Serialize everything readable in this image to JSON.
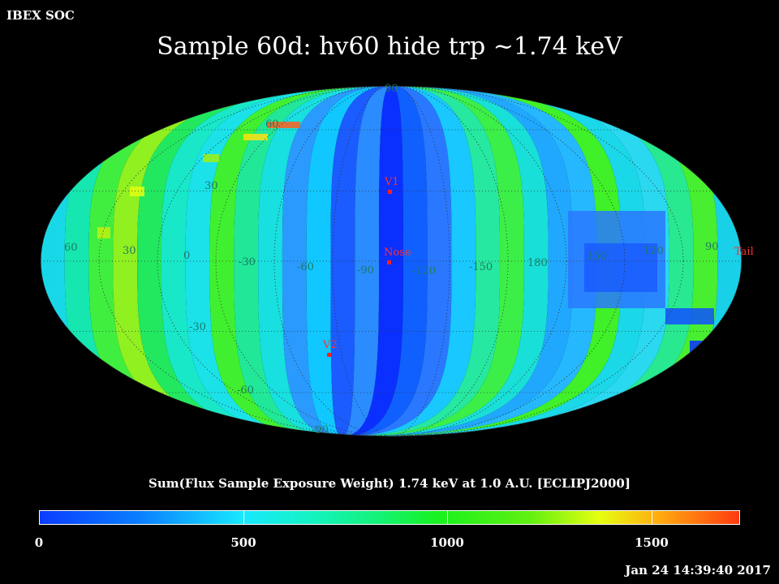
{
  "header": {
    "corner_label": "IBEX SOC",
    "title": "Sample 60d: hv60 hide trp ~1.74 keV"
  },
  "map": {
    "projection": "Mollweide",
    "lat_labels": [
      "90",
      "60",
      "30",
      "-30",
      "-60",
      "-90"
    ],
    "lon_labels": [
      "60",
      "30",
      "0",
      "-30",
      "-60",
      "-90",
      "-120",
      "-150",
      "180",
      "150",
      "120",
      "90"
    ],
    "markers": [
      {
        "label": "V1",
        "color": "#ff3030"
      },
      {
        "label": "Nose",
        "color": "#ff3030"
      },
      {
        "label": "V2",
        "color": "#ff3030"
      },
      {
        "label": "Tail",
        "color": "#ff3030"
      }
    ]
  },
  "colorbar": {
    "title": "Sum(Flux Sample Exposure Weight)  1.74 keV at 1.0 A.U. [ECLIPJ2000]",
    "min": 0,
    "max": 1720,
    "ticks": [
      "0",
      "500",
      "1000",
      "1500"
    ],
    "tick_values": [
      0,
      500,
      1000,
      1500
    ],
    "colors": [
      "#0b3dff",
      "#0a7dff",
      "#18e8ff",
      "#15f2c8",
      "#14f27a",
      "#18f21e",
      "#60f010",
      "#e6ff10",
      "#ffb010",
      "#ff3a10"
    ]
  },
  "footer": {
    "timestamp": "Jan 24 14:39:40 2017"
  }
}
